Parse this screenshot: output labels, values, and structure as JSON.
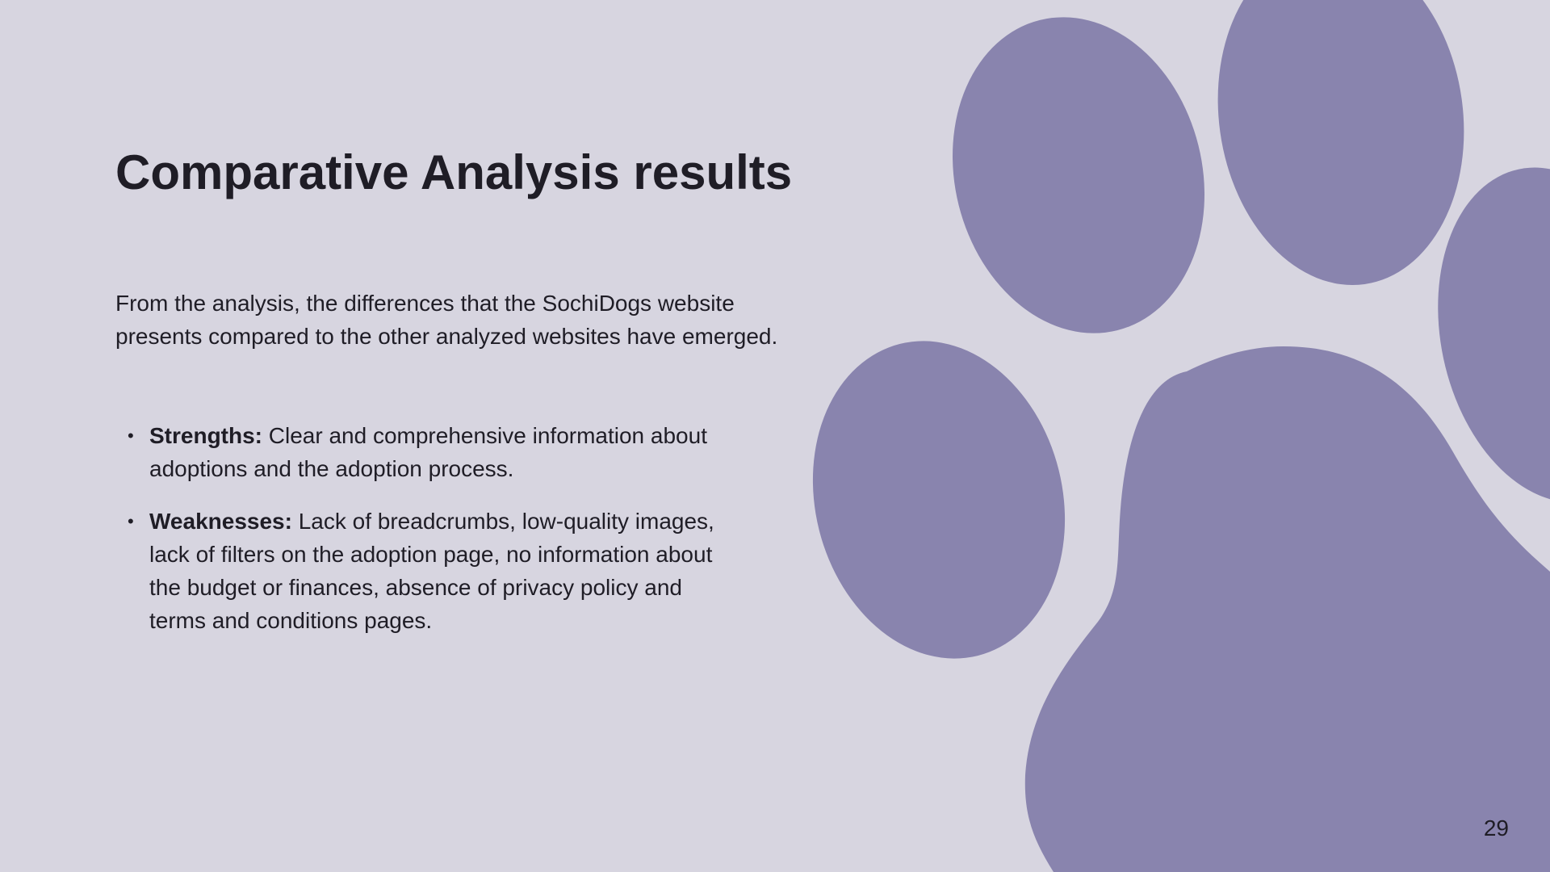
{
  "slide": {
    "title": "Comparative Analysis results",
    "intro": "From the analysis, the differences that the SochiDogs website presents compared to the other analyzed websites have emerged.",
    "bullets": [
      {
        "label": "Strengths:",
        "text": " Clear and comprehensive information about adoptions and the adoption process."
      },
      {
        "label": "Weaknesses:",
        "text": " Lack of breadcrumbs, low-quality images, lack of filters on the adoption page, no information about the budget or finances, absence of privacy policy and terms and conditions pages."
      }
    ],
    "page_number": "29"
  },
  "decoration": {
    "icon": "paw-print-icon",
    "paw_color": "#8984ae",
    "background_color": "#d7d5e0"
  }
}
